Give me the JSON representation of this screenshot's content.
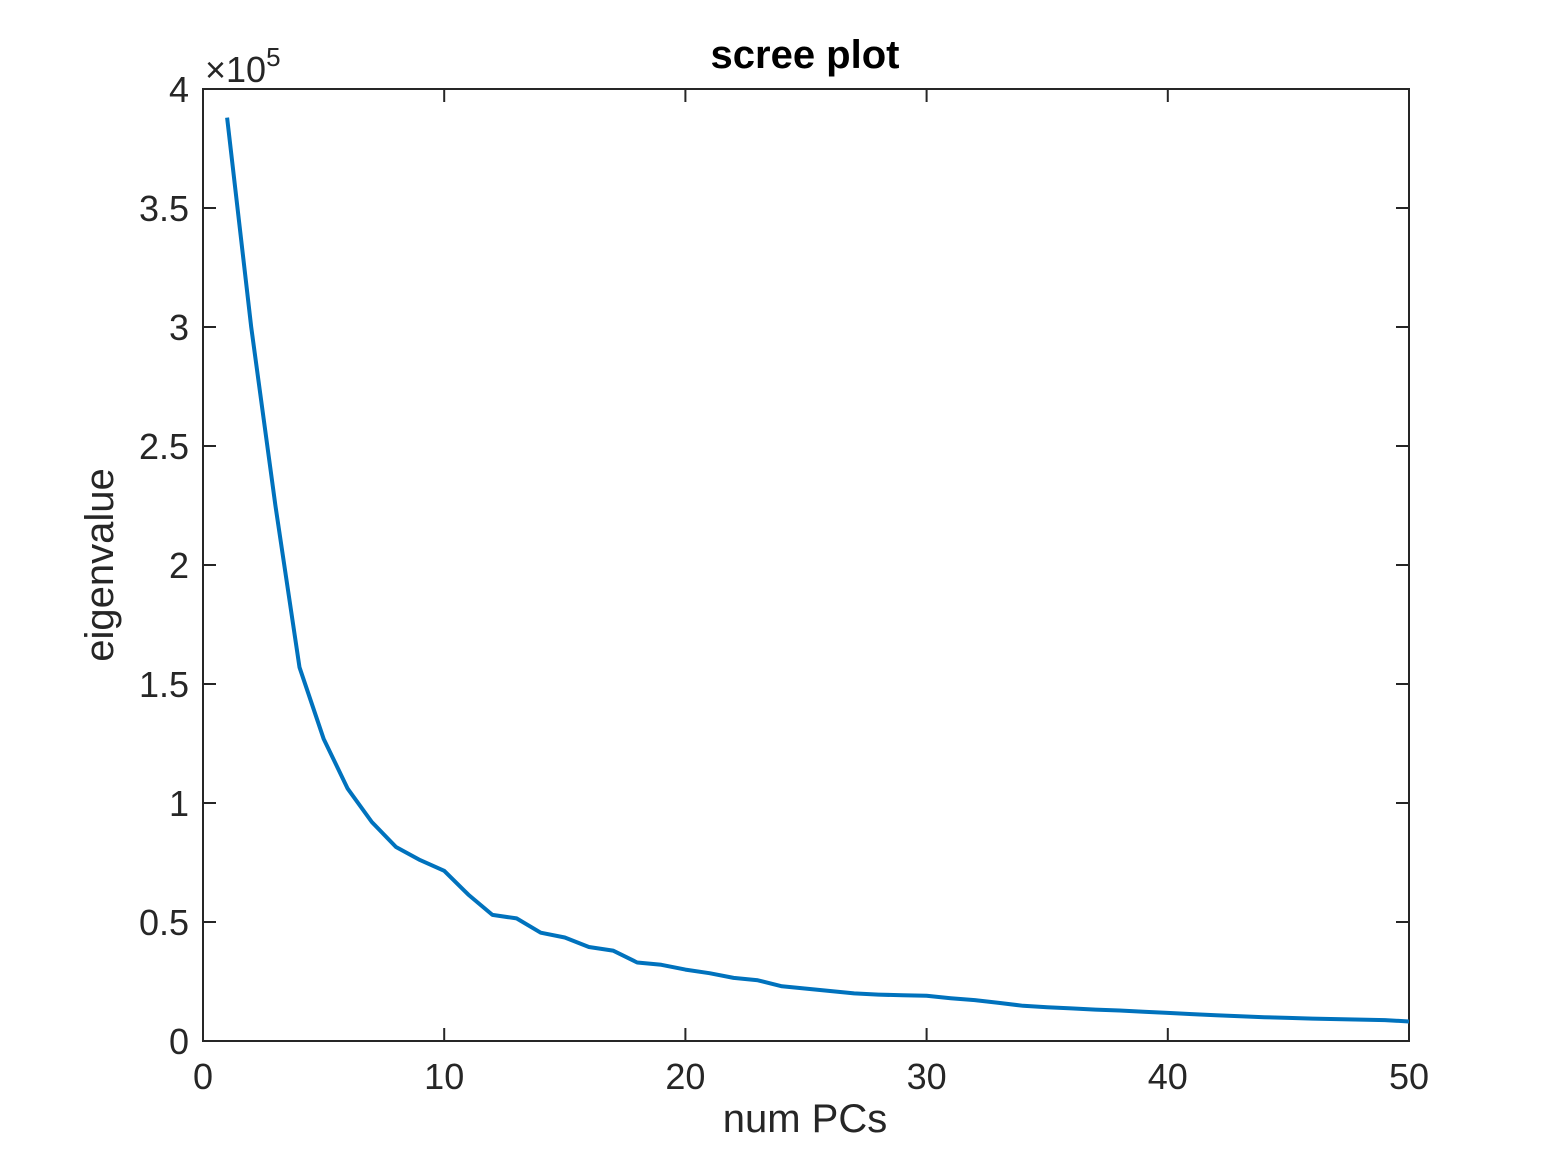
{
  "chart_data": {
    "type": "line",
    "title": "scree plot",
    "xlabel": "num PCs",
    "ylabel": "eigenvalue",
    "xlim": [
      0,
      50
    ],
    "ylim": [
      0,
      4
    ],
    "y_multiplier": "×10",
    "y_multiplier_exponent": "5",
    "xticks": [
      0,
      10,
      20,
      30,
      40,
      50
    ],
    "xtick_labels": [
      "0",
      "10",
      "20",
      "30",
      "40",
      "50"
    ],
    "yticks": [
      0,
      0.5,
      1,
      1.5,
      2,
      2.5,
      3,
      3.5,
      4
    ],
    "ytick_labels": [
      "0",
      "0.5",
      "1",
      "1.5",
      "2",
      "2.5",
      "3",
      "3.5",
      "4"
    ],
    "grid": false,
    "line_color": "#0072BD",
    "axis_color": "#262626",
    "series": [
      {
        "x": [
          1,
          2,
          3,
          4,
          5,
          6,
          7,
          8,
          9,
          10,
          11,
          12,
          13,
          14,
          15,
          16,
          17,
          18,
          19,
          20,
          21,
          22,
          23,
          24,
          25,
          26,
          27,
          28,
          29,
          30,
          31,
          32,
          33,
          34,
          35,
          36,
          37,
          38,
          39,
          40,
          41,
          42,
          43,
          44,
          45,
          46,
          47,
          48,
          49,
          50
        ],
        "values": [
          3.88,
          3.0,
          2.25,
          1.57,
          1.27,
          1.06,
          0.92,
          0.815,
          0.76,
          0.715,
          0.615,
          0.53,
          0.515,
          0.455,
          0.435,
          0.395,
          0.38,
          0.33,
          0.32,
          0.3,
          0.285,
          0.265,
          0.255,
          0.23,
          0.22,
          0.21,
          0.2,
          0.195,
          0.192,
          0.19,
          0.18,
          0.172,
          0.16,
          0.148,
          0.142,
          0.137,
          0.132,
          0.128,
          0.123,
          0.118,
          0.113,
          0.108,
          0.104,
          0.1,
          0.097,
          0.094,
          0.092,
          0.09,
          0.088,
          0.082
        ]
      }
    ]
  }
}
